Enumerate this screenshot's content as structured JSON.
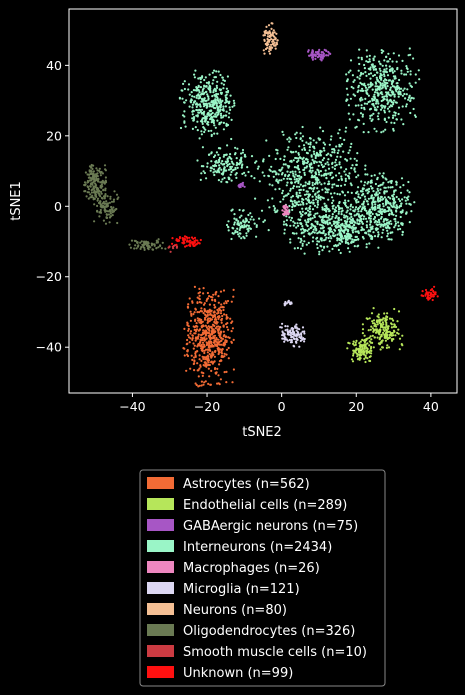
{
  "chart_data": {
    "type": "scatter",
    "xlabel": "tSNE2",
    "ylabel": "tSNE1",
    "xlim": [
      -57,
      47
    ],
    "ylim": [
      -53,
      56
    ],
    "xticks": [
      -40,
      -20,
      0,
      20,
      40
    ],
    "yticks": [
      -40,
      -20,
      0,
      20,
      40
    ],
    "grid": false,
    "legend_position": "below",
    "series": [
      {
        "name": "Astrocytes (n=562)",
        "color": "#f26b35",
        "clusters": [
          {
            "cx": -19.5,
            "cy": -37,
            "sx": 3.2,
            "sy": 6.5,
            "n": 562
          }
        ]
      },
      {
        "name": "Endothelial cells (n=289)",
        "color": "#b6e65a",
        "clusters": [
          {
            "cx": 27,
            "cy": -35,
            "sx": 2.5,
            "sy": 2.8,
            "n": 180
          },
          {
            "cx": 21.5,
            "cy": -41,
            "sx": 1.8,
            "sy": 1.6,
            "n": 109
          }
        ]
      },
      {
        "name": "GABAergic neurons (n=75)",
        "color": "#a756c5",
        "clusters": [
          {
            "cx": 10,
            "cy": 43,
            "sx": 1.8,
            "sy": 0.8,
            "n": 60
          },
          {
            "cx": -11,
            "cy": 6,
            "sx": 0.5,
            "sy": 0.5,
            "n": 15
          }
        ]
      },
      {
        "name": "Interneurons (n=2434)",
        "color": "#9af5c7",
        "clusters": [
          {
            "cx": 27,
            "cy": 33,
            "sx": 4.5,
            "sy": 5.5,
            "n": 430
          },
          {
            "cx": -20,
            "cy": 29,
            "sx": 3.5,
            "sy": 4.5,
            "n": 380
          },
          {
            "cx": 8,
            "cy": 8,
            "sx": 7,
            "sy": 7,
            "n": 560
          },
          {
            "cx": 15,
            "cy": -6,
            "sx": 6.5,
            "sy": 3.5,
            "n": 470
          },
          {
            "cx": 27,
            "cy": 0,
            "sx": 4,
            "sy": 4.5,
            "n": 360
          },
          {
            "cx": -15,
            "cy": 12,
            "sx": 3.5,
            "sy": 2.5,
            "n": 150
          },
          {
            "cx": -11,
            "cy": -5,
            "sx": 2,
            "sy": 2,
            "n": 84
          }
        ]
      },
      {
        "name": "Macrophages (n=26)",
        "color": "#ee87c0",
        "clusters": [
          {
            "cx": 1,
            "cy": -1.5,
            "sx": 0.5,
            "sy": 0.8,
            "n": 26
          }
        ]
      },
      {
        "name": "Microglia (n=121)",
        "color": "#dcd7f2",
        "clusters": [
          {
            "cx": 3,
            "cy": -36.5,
            "sx": 1.6,
            "sy": 1.6,
            "n": 105
          },
          {
            "cx": 2,
            "cy": -27.5,
            "sx": 0.8,
            "sy": 0.4,
            "n": 16
          }
        ]
      },
      {
        "name": "Neurons (n=80)",
        "color": "#f4bf94",
        "clusters": [
          {
            "cx": -3,
            "cy": 47,
            "sx": 0.9,
            "sy": 2.3,
            "n": 80
          }
        ]
      },
      {
        "name": "Oligodendrocytes (n=326)",
        "color": "#6a7a53",
        "clusters": [
          {
            "cx": -50,
            "cy": 7,
            "sx": 1.5,
            "sy": 2.5,
            "n": 160
          },
          {
            "cx": -47,
            "cy": 0,
            "sx": 1.5,
            "sy": 2.5,
            "n": 100
          },
          {
            "cx": -36,
            "cy": -11,
            "sx": 2.5,
            "sy": 0.8,
            "n": 66
          }
        ]
      },
      {
        "name": "Smooth muscle cells (n=10)",
        "color": "#cc3b42",
        "clusters": [
          {
            "cx": -29,
            "cy": -12,
            "sx": 0.6,
            "sy": 0.5,
            "n": 10
          }
        ]
      },
      {
        "name": "Unknown (n=99)",
        "color": "#ff1010",
        "clusters": [
          {
            "cx": -25,
            "cy": -10,
            "sx": 2,
            "sy": 0.7,
            "n": 60
          },
          {
            "cx": 40,
            "cy": -25,
            "sx": 1.2,
            "sy": 1,
            "n": 39
          }
        ]
      }
    ]
  }
}
